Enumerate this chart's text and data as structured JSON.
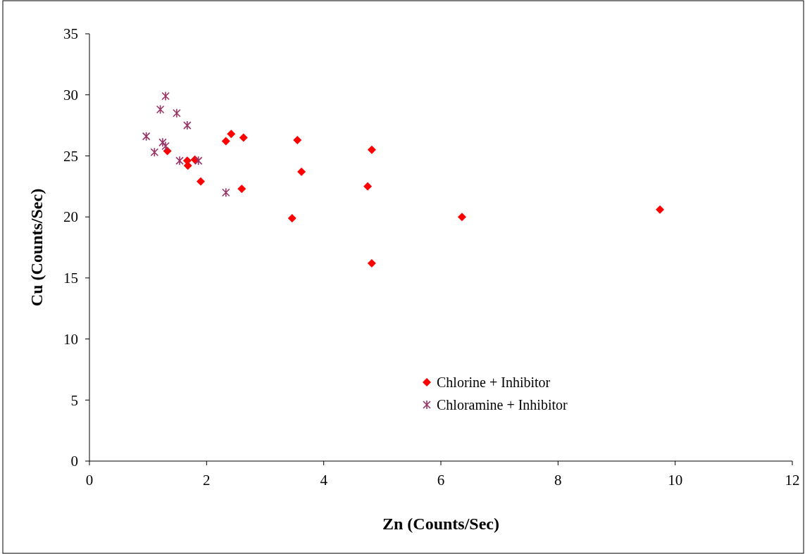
{
  "chart_data": {
    "type": "scatter",
    "xlabel": "Zn (Counts/Sec)",
    "ylabel": "Cu (Counts/Sec)",
    "xlim": [
      0,
      12
    ],
    "xticks": [
      0,
      2,
      4,
      6,
      8,
      10,
      12
    ],
    "ylim": [
      0,
      35
    ],
    "yticks": [
      0,
      5,
      10,
      15,
      20,
      25,
      30,
      35
    ],
    "grid": false,
    "legend": "bottom",
    "series": [
      {
        "name": "Chlorine + Inhibitor",
        "color": "#ff0000",
        "marker": "diamond",
        "x": [
          1.33,
          1.67,
          1.68,
          1.8,
          1.9,
          2.33,
          2.42,
          2.63,
          2.6,
          3.55,
          3.62,
          3.46,
          4.82,
          4.75,
          4.82,
          6.36,
          9.74
        ],
        "values": [
          25.4,
          24.6,
          24.2,
          24.7,
          22.9,
          26.2,
          26.8,
          26.5,
          22.3,
          26.3,
          23.7,
          19.9,
          25.5,
          22.5,
          16.2,
          20.0,
          20.6
        ]
      },
      {
        "name": "Chloramine + Inhibitor",
        "color": "#993366",
        "marker": "cross",
        "x": [
          1.3,
          1.21,
          1.49,
          1.67,
          0.97,
          1.25,
          1.3,
          1.11,
          1.54,
          1.86,
          2.33
        ],
        "values": [
          29.9,
          28.8,
          28.5,
          27.5,
          26.6,
          26.1,
          25.8,
          25.3,
          24.6,
          24.6,
          22.0
        ]
      }
    ]
  }
}
